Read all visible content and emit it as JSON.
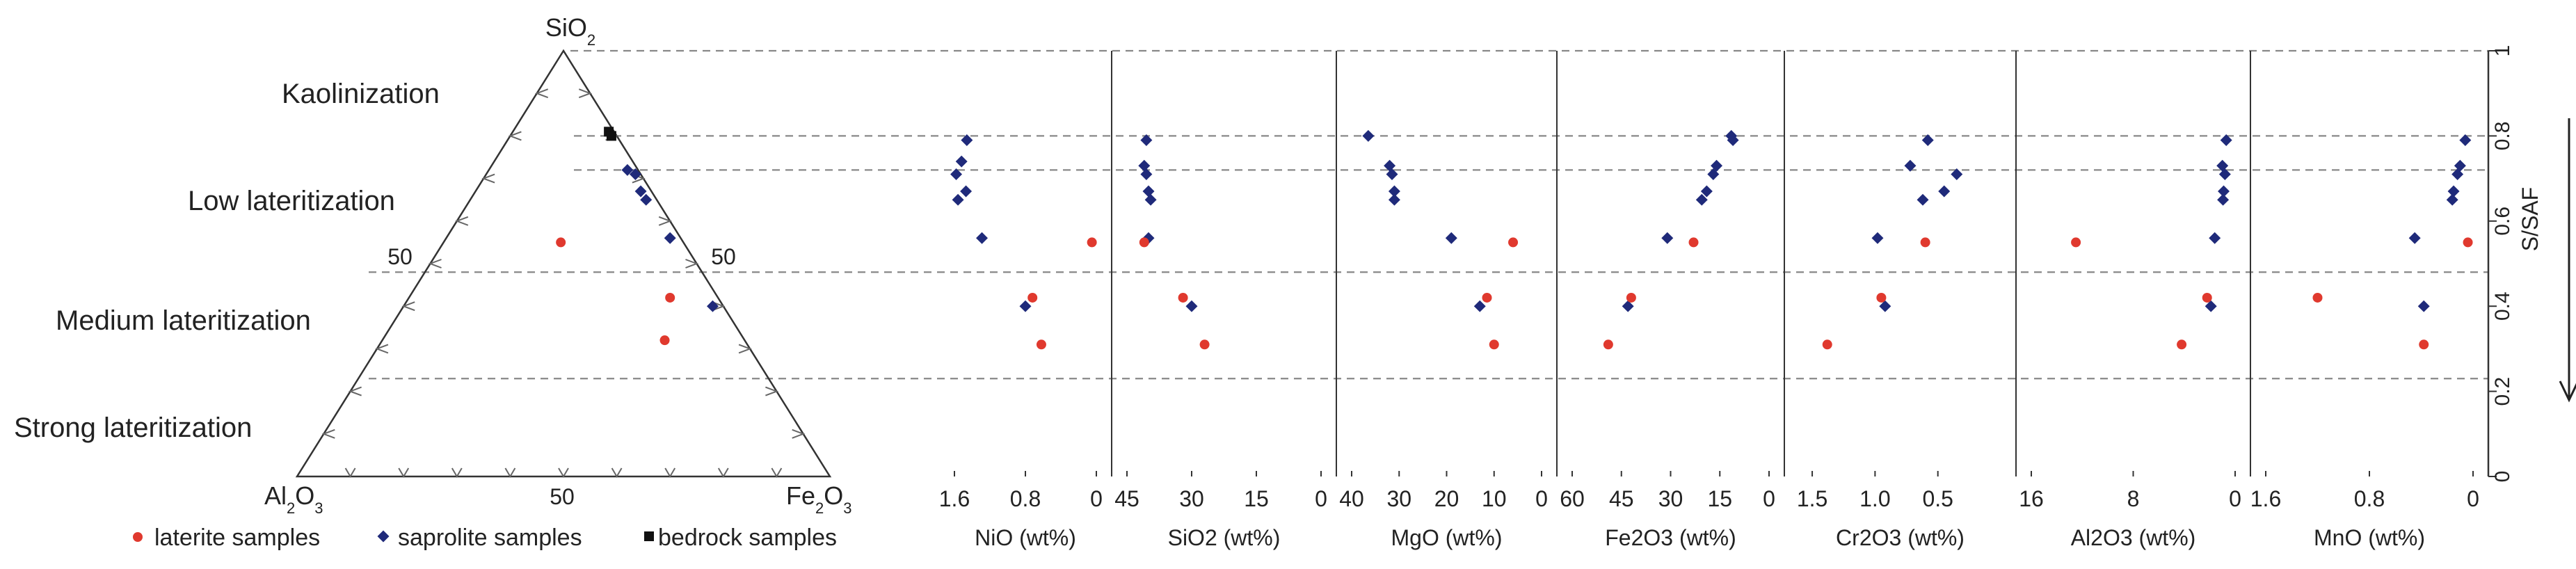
{
  "chart_data": {
    "type": "scatter",
    "zones": {
      "boundaries": [
        0.8,
        0.72,
        0.48,
        0.23
      ],
      "labels": [
        "Kaolinization",
        "Low lateritization",
        "Medium lateritization",
        "Strong lateritization"
      ]
    },
    "ternary": {
      "vertices": {
        "top": "SiO2",
        "left": "Al2O3",
        "right": "Fe2O3"
      },
      "side_labels": {
        "left_mid": "50",
        "right_mid": "50",
        "bottom_mid": "50"
      },
      "points": {
        "laterite": [
          {
            "sio2": 0.55,
            "fe2o3": 0.22
          },
          {
            "sio2": 0.42,
            "fe2o3": 0.49
          },
          {
            "sio2": 0.32,
            "fe2o3": 0.53
          }
        ],
        "saprolite": [
          {
            "sio2": 0.72,
            "fe2o3": 0.26
          },
          {
            "sio2": 0.71,
            "fe2o3": 0.28
          },
          {
            "sio2": 0.67,
            "fe2o3": 0.31
          },
          {
            "sio2": 0.65,
            "fe2o3": 0.33
          },
          {
            "sio2": 0.56,
            "fe2o3": 0.42
          },
          {
            "sio2": 0.4,
            "fe2o3": 0.58
          }
        ],
        "bedrock": [
          {
            "sio2": 0.81,
            "fe2o3": 0.18
          },
          {
            "sio2": 0.8,
            "fe2o3": 0.19
          }
        ]
      }
    },
    "panels": [
      {
        "label": "NiO (wt%)",
        "xlim": [
          1.6,
          0
        ],
        "ticks": [
          "1.6",
          "0.8",
          "0"
        ],
        "tick_values": [
          1.6,
          0.8,
          0
        ],
        "laterite": [
          [
            0.05,
            0.55
          ],
          [
            0.72,
            0.42
          ],
          [
            0.62,
            0.31
          ]
        ],
        "saprolite": [
          [
            1.46,
            0.79
          ],
          [
            1.52,
            0.74
          ],
          [
            1.58,
            0.71
          ],
          [
            1.47,
            0.67
          ],
          [
            1.56,
            0.65
          ],
          [
            1.29,
            0.56
          ],
          [
            0.8,
            0.4
          ]
        ]
      },
      {
        "label": "SiO2 (wt%)",
        "xlim": [
          45,
          0
        ],
        "ticks": [
          "45",
          "30",
          "15",
          "0"
        ],
        "tick_values": [
          45,
          30,
          15,
          0
        ],
        "laterite": [
          [
            41,
            0.55
          ],
          [
            32,
            0.42
          ],
          [
            27,
            0.31
          ]
        ],
        "saprolite": [
          [
            40.5,
            0.79
          ],
          [
            41,
            0.73
          ],
          [
            40.5,
            0.71
          ],
          [
            40,
            0.67
          ],
          [
            39.5,
            0.65
          ],
          [
            40,
            0.56
          ],
          [
            30,
            0.4
          ]
        ]
      },
      {
        "label": "MgO (wt%)",
        "xlim": [
          40,
          0
        ],
        "ticks": [
          "40",
          "30",
          "20",
          "10",
          "0"
        ],
        "tick_values": [
          40,
          30,
          20,
          10,
          0
        ],
        "laterite": [
          [
            6,
            0.55
          ],
          [
            11.5,
            0.42
          ],
          [
            10,
            0.31
          ]
        ],
        "saprolite": [
          [
            36.5,
            0.8
          ],
          [
            32,
            0.73
          ],
          [
            31.5,
            0.71
          ],
          [
            31,
            0.67
          ],
          [
            31,
            0.65
          ],
          [
            19,
            0.56
          ],
          [
            13,
            0.4
          ]
        ]
      },
      {
        "label": "Fe2O3 (wt%)",
        "xlim": [
          60,
          0
        ],
        "ticks": [
          "60",
          "45",
          "30",
          "15",
          "0"
        ],
        "tick_values": [
          60,
          45,
          30,
          15,
          0
        ],
        "laterite": [
          [
            23,
            0.55
          ],
          [
            42,
            0.42
          ],
          [
            49,
            0.31
          ]
        ],
        "saprolite": [
          [
            11,
            0.79
          ],
          [
            11.5,
            0.8
          ],
          [
            16,
            0.73
          ],
          [
            17,
            0.71
          ],
          [
            19,
            0.67
          ],
          [
            20.5,
            0.65
          ],
          [
            31,
            0.56
          ],
          [
            43,
            0.4
          ]
        ]
      },
      {
        "label": "Cr2O3 (wt%)",
        "xlim": [
          1.6,
          0
        ],
        "ticks": [
          "1.5",
          "1.0",
          "0.5"
        ],
        "tick_values": [
          1.5,
          1.0,
          0.5
        ],
        "laterite": [
          [
            0.6,
            0.55
          ],
          [
            0.95,
            0.42
          ],
          [
            1.38,
            0.31
          ]
        ],
        "saprolite": [
          [
            0.58,
            0.79
          ],
          [
            0.72,
            0.73
          ],
          [
            0.35,
            0.71
          ],
          [
            0.45,
            0.67
          ],
          [
            0.62,
            0.65
          ],
          [
            0.98,
            0.56
          ],
          [
            0.92,
            0.4
          ]
        ]
      },
      {
        "label": "Al2O3 (wt%)",
        "xlim": [
          16,
          0
        ],
        "ticks": [
          "16",
          "8",
          "0"
        ],
        "tick_values": [
          16,
          8,
          0
        ],
        "laterite": [
          [
            12.5,
            0.55
          ],
          [
            2.2,
            0.42
          ],
          [
            4.2,
            0.31
          ]
        ],
        "saprolite": [
          [
            0.7,
            0.79
          ],
          [
            1.0,
            0.73
          ],
          [
            0.8,
            0.71
          ],
          [
            0.9,
            0.67
          ],
          [
            0.95,
            0.65
          ],
          [
            1.6,
            0.56
          ],
          [
            1.9,
            0.4
          ]
        ]
      },
      {
        "label": "MnO (wt%)",
        "xlim": [
          1.6,
          0
        ],
        "ticks": [
          "1.6",
          "0.8",
          "0"
        ],
        "tick_values": [
          1.6,
          0.8,
          0
        ],
        "laterite": [
          [
            0.04,
            0.55
          ],
          [
            1.2,
            0.42
          ],
          [
            0.38,
            0.31
          ]
        ],
        "saprolite": [
          [
            0.06,
            0.79
          ],
          [
            0.1,
            0.73
          ],
          [
            0.12,
            0.71
          ],
          [
            0.15,
            0.67
          ],
          [
            0.16,
            0.65
          ],
          [
            0.45,
            0.56
          ],
          [
            0.38,
            0.4
          ]
        ]
      }
    ],
    "yaxis": {
      "label": "S/SAF",
      "ylim": [
        0,
        1
      ],
      "ticks": [
        "0",
        "0.2",
        "0.4",
        "0.6",
        "0.8",
        "1"
      ],
      "tick_values": [
        0,
        0.2,
        0.4,
        0.6,
        0.8,
        1
      ]
    },
    "legend": [
      "laterite samples",
      "saprolite samples",
      "bedrock samples"
    ],
    "colors": {
      "laterite": "#e0392e",
      "saprolite": "#1f2a7a",
      "bedrock": "#111111",
      "guide": "#888888",
      "axis": "#333333"
    }
  }
}
